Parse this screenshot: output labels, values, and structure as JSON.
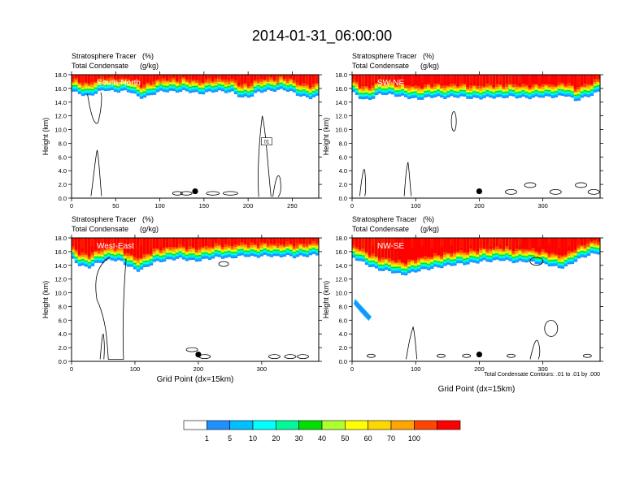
{
  "title": "2014-01-31_06:00:00",
  "panel_header": {
    "line1_label": "Stratosphere Tracer",
    "line1_unit": "(%)",
    "line2_label": "Total Condensate",
    "line2_unit": "(g/kg)"
  },
  "ylabel": "Height (km)",
  "xlabel": "Grid Point (dx=15km)",
  "contour_note": "Total Condensate Contours: .01 to .01 by .000",
  "colorbar": {
    "ticks": [
      "1",
      "5",
      "10",
      "20",
      "30",
      "40",
      "50",
      "60",
      "70",
      "100"
    ],
    "colors": [
      "#ffffff",
      "#1e90ff",
      "#00bfff",
      "#00ffff",
      "#00fa9a",
      "#00e000",
      "#adff2f",
      "#ffff00",
      "#ffd700",
      "#ffa500",
      "#ff4500",
      "#ff0000"
    ]
  },
  "chart_data": [
    {
      "type": "heatmap",
      "name": "South-North",
      "xticks": [
        0,
        50,
        100,
        150,
        200,
        250
      ],
      "xlim": [
        0,
        280
      ],
      "ylim": [
        0,
        18
      ],
      "yticks": [
        "0.0",
        "2.0",
        "4.0",
        "6.0",
        "8.0",
        "10.0",
        "12.0",
        "14.0",
        "16.0",
        "18.0"
      ],
      "tropopause_km": [
        15.6,
        15.2,
        14.8,
        15.4,
        15.8,
        15.5,
        15.6,
        15.5,
        14.6,
        14.8,
        15.4,
        15.6,
        15.5,
        15.6,
        15.5,
        15.2,
        15.4,
        15.6,
        15.5,
        15.4,
        14.6,
        14.8,
        15.5,
        15.6,
        15.7,
        15.8,
        15.4,
        14.8,
        14.6,
        14.8
      ],
      "contour_label": "01",
      "marker_x": 140
    },
    {
      "type": "heatmap",
      "name": "SW-NE",
      "xticks": [
        0,
        100,
        200,
        300
      ],
      "xlim": [
        0,
        390
      ],
      "ylim": [
        0,
        18
      ],
      "yticks": [
        "0.0",
        "2.0",
        "4.0",
        "6.0",
        "8.0",
        "10.0",
        "12.0",
        "14.0",
        "16.0",
        "18.0"
      ],
      "tropopause_km": [
        15.5,
        14.6,
        14.2,
        15.0,
        15.2,
        15.0,
        14.8,
        14.6,
        14.4,
        14.6,
        14.8,
        14.6,
        14.7,
        14.8,
        14.6,
        14.5,
        14.6,
        14.7,
        14.6,
        14.8,
        14.7,
        14.6,
        14.6,
        14.8,
        14.7,
        14.8,
        15.0,
        14.2,
        14.6,
        15.0,
        15.6
      ],
      "marker_x": 200
    },
    {
      "type": "heatmap",
      "name": "West-East",
      "xticks": [
        0,
        100,
        200,
        300
      ],
      "xlim": [
        0,
        390
      ],
      "ylim": [
        0,
        18
      ],
      "yticks": [
        "0.0",
        "2.0",
        "4.0",
        "6.0",
        "8.0",
        "10.0",
        "12.0",
        "14.0",
        "16.0",
        "18.0"
      ],
      "tropopause_km": [
        15.0,
        14.0,
        13.6,
        14.2,
        14.6,
        14.8,
        14.6,
        13.8,
        13.2,
        13.6,
        14.4,
        14.6,
        14.8,
        15.0,
        14.8,
        14.6,
        14.8,
        15.0,
        15.2,
        15.0,
        15.2,
        15.4,
        15.2,
        15.3,
        15.4,
        15.2,
        15.4,
        15.2,
        15.3,
        15.4,
        15.6
      ],
      "marker_x": 200
    },
    {
      "type": "heatmap",
      "name": "NW-SE",
      "xticks": [
        0,
        100,
        200,
        300
      ],
      "xlim": [
        0,
        390
      ],
      "ylim": [
        0,
        18
      ],
      "yticks": [
        "0.0",
        "2.0",
        "4.0",
        "6.0",
        "8.0",
        "10.0",
        "12.0",
        "14.0",
        "16.0",
        "18.0"
      ],
      "tropopause_km": [
        15.2,
        14.6,
        14.0,
        13.4,
        13.2,
        13.0,
        12.6,
        12.8,
        13.2,
        13.4,
        13.6,
        13.8,
        14.0,
        14.2,
        14.2,
        14.4,
        14.6,
        14.6,
        14.8,
        14.6,
        14.4,
        14.6,
        14.4,
        14.2,
        14.0,
        13.6,
        13.8,
        14.6,
        15.2,
        15.6,
        15.8
      ],
      "marker_x": 200
    }
  ]
}
